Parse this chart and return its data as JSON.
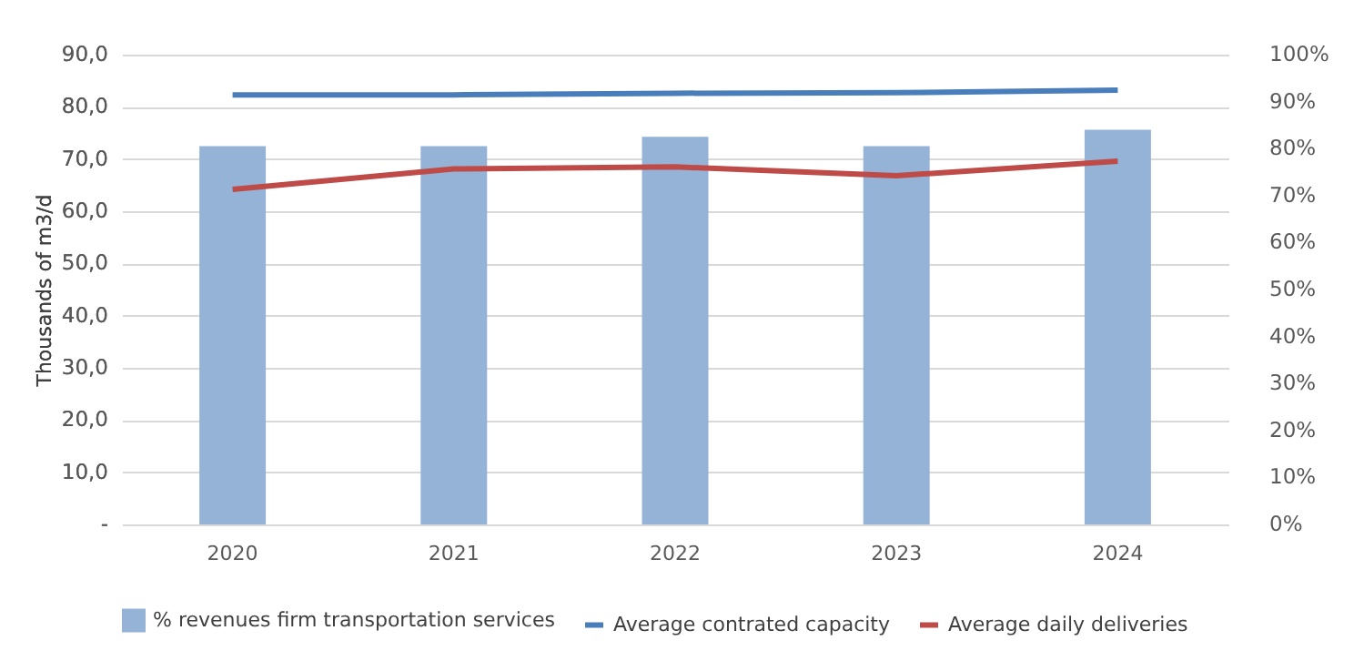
{
  "chart_data": {
    "type": "bar",
    "ylabel": "Thousands of m3/d",
    "categories": [
      "2020",
      "2021",
      "2022",
      "2023",
      "2024"
    ],
    "series": [
      {
        "name": "% revenues firm transportation services",
        "axis": "y2",
        "color": "#95b3d7",
        "values": [
          80.5,
          80.5,
          82.5,
          80.5,
          84
        ]
      },
      {
        "name": "Average contrated capacity",
        "type": "line",
        "color": "#4a7ebb",
        "values": [
          82.3,
          82.3,
          82.6,
          82.7,
          83.2
        ]
      },
      {
        "name": "Average daily deliveries",
        "type": "line",
        "color": "#be4b48",
        "values": [
          64.2,
          68.1,
          68.5,
          66.8,
          69.6
        ]
      }
    ],
    "ylim": [
      0,
      90
    ],
    "yticks": [
      {
        "value": 0,
        "label": "-"
      },
      {
        "value": 10,
        "label": "10,0"
      },
      {
        "value": 20,
        "label": "20,0"
      },
      {
        "value": 30,
        "label": "30,0"
      },
      {
        "value": 40,
        "label": "40,0"
      },
      {
        "value": 50,
        "label": "50,0"
      },
      {
        "value": 60,
        "label": "60,0"
      },
      {
        "value": 70,
        "label": "70,0"
      },
      {
        "value": 80,
        "label": "80,0"
      },
      {
        "value": 90,
        "label": "90,0"
      }
    ],
    "y2lim": [
      0,
      100
    ],
    "y2ticks": [
      {
        "value": 0,
        "label": "0%"
      },
      {
        "value": 10,
        "label": "10%"
      },
      {
        "value": 20,
        "label": "20%"
      },
      {
        "value": 30,
        "label": "30%"
      },
      {
        "value": 40,
        "label": "40%"
      },
      {
        "value": 50,
        "label": "50%"
      },
      {
        "value": 60,
        "label": "60%"
      },
      {
        "value": 70,
        "label": "70%"
      },
      {
        "value": 80,
        "label": "80%"
      },
      {
        "value": 90,
        "label": "90%"
      },
      {
        "value": 100,
        "label": "100%"
      }
    ],
    "grid": "y",
    "legend": "bottom",
    "line_style": "solid"
  }
}
